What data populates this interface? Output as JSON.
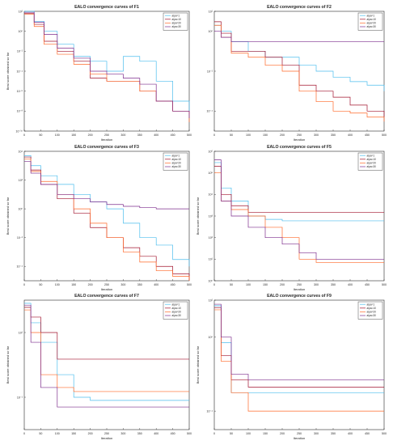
{
  "colors": {
    "axis": "#262626",
    "series": [
      "#4dbeee",
      "#a2142f",
      "#ff6929",
      "#7e2f8e"
    ],
    "grid": "#e0e0e0"
  },
  "chart_data": [
    {
      "type": "line",
      "title": "EALO convergence curves of F1",
      "xlabel": "Iteration",
      "ylabel": "Best score obtained so far",
      "xlim": [
        0,
        500
      ],
      "xticks": [
        0,
        50,
        100,
        150,
        200,
        250,
        300,
        350,
        400,
        450,
        500
      ],
      "yscale": "log",
      "ylim": [
        1e-10,
        100
      ],
      "yticks": [
        1e-10,
        1e-08,
        1e-06,
        0.0001,
        0.01,
        1,
        100
      ],
      "ytick_labels": [
        "10⁻¹⁰",
        "10⁻⁸",
        "10⁻⁶",
        "10⁻⁴",
        "10⁻²",
        "10⁰",
        "10²"
      ],
      "legend_position": "top-right",
      "grid": false,
      "series": [
        {
          "name": "alpa=1",
          "x": [
            0,
            30,
            60,
            100,
            150,
            200,
            250,
            300,
            350,
            400,
            450,
            500
          ],
          "y": [
            100,
            10,
            1,
            0.05,
            0.003,
            0.001,
            0.0001,
            0.003,
            0.001,
            1e-05,
            1e-07,
            3e-09
          ]
        },
        {
          "name": "alpa=10",
          "x": [
            0,
            30,
            60,
            100,
            150,
            200,
            250,
            300,
            350,
            400,
            450,
            500
          ],
          "y": [
            60,
            5,
            0.1,
            0.01,
            0.001,
            2e-05,
            1e-05,
            1e-05,
            1e-06,
            1e-07,
            1e-08,
            5e-09
          ]
        },
        {
          "name": "alpa=20",
          "x": [
            0,
            30,
            60,
            100,
            150,
            200,
            250,
            300,
            350,
            400,
            450,
            500
          ],
          "y": [
            50,
            3,
            0.05,
            0.005,
            0.0005,
            5e-05,
            1e-05,
            1e-05,
            1e-06,
            1e-07,
            1e-08,
            8e-10
          ]
        },
        {
          "name": "alpa=30",
          "x": [
            0,
            30,
            60,
            100,
            150,
            200,
            250,
            300,
            350,
            400,
            450,
            500
          ],
          "y": [
            80,
            8,
            0.5,
            0.02,
            0.002,
            0.0001,
            5e-05,
            2e-05,
            5e-06,
            1e-07,
            1e-08,
            2e-09
          ]
        }
      ]
    },
    {
      "type": "line",
      "title": "EALO convergence curves of F2",
      "xlabel": "Iteration",
      "ylabel": "",
      "xlim": [
        0,
        500
      ],
      "xticks": [
        0,
        50,
        100,
        150,
        200,
        250,
        300,
        350,
        400,
        450,
        500
      ],
      "yscale": "log",
      "ylim": [
        1e-05,
        10
      ],
      "yticks": [
        0.0001,
        0.01,
        1,
        10
      ],
      "ytick_labels": [
        "10⁻⁴",
        "10⁻²",
        "10⁰",
        "10¹"
      ],
      "legend_position": "top-right",
      "grid": false,
      "series": [
        {
          "name": "alpa=1",
          "x": [
            0,
            20,
            50,
            100,
            150,
            200,
            250,
            300,
            350,
            400,
            450,
            500
          ],
          "y": [
            2,
            1,
            0.3,
            0.1,
            0.05,
            0.05,
            0.02,
            0.01,
            0.005,
            0.003,
            0.002,
            0.001
          ]
        },
        {
          "name": "alpa=10",
          "x": [
            0,
            20,
            50,
            100,
            150,
            200,
            250,
            300,
            350,
            400,
            450,
            500
          ],
          "y": [
            3,
            0.8,
            0.1,
            0.1,
            0.05,
            0.02,
            0.002,
            0.001,
            0.0005,
            0.0002,
            0.0001,
            5e-05
          ]
        },
        {
          "name": "alpa=20",
          "x": [
            0,
            20,
            50,
            100,
            150,
            200,
            250,
            300,
            350,
            400,
            450,
            500
          ],
          "y": [
            2,
            0.5,
            0.08,
            0.05,
            0.02,
            0.01,
            0.001,
            0.0003,
            0.0001,
            8e-05,
            5e-05,
            3e-05
          ]
        },
        {
          "name": "alpa=30",
          "x": [
            0,
            20,
            50,
            100,
            150,
            200,
            250,
            300,
            350,
            400,
            450,
            500
          ],
          "y": [
            1,
            0.5,
            0.3,
            0.3,
            0.3,
            0.3,
            0.3,
            0.3,
            0.3,
            0.3,
            0.3,
            0.3
          ]
        }
      ]
    },
    {
      "type": "line",
      "title": "EALO convergence curves of F3",
      "xlabel": "Iteration",
      "ylabel": "Best score obtained so far",
      "xlim": [
        0,
        500
      ],
      "xticks": [
        0,
        50,
        100,
        150,
        200,
        250,
        300,
        350,
        400,
        450,
        500
      ],
      "yscale": "log",
      "ylim": [
        1e-05,
        10000
      ],
      "yticks": [
        0.0001,
        0.01,
        1,
        100,
        10000
      ],
      "ytick_labels": [
        "10⁻⁴",
        "10⁻²",
        "10⁰",
        "10²",
        "10⁴"
      ],
      "legend_position": "top-right",
      "grid": false,
      "series": [
        {
          "name": "alpa=1",
          "x": [
            0,
            20,
            50,
            100,
            150,
            200,
            250,
            300,
            350,
            400,
            450,
            500
          ],
          "y": [
            5000,
            1000,
            200,
            50,
            10,
            3,
            1,
            0.1,
            0.01,
            0.003,
            0.0003,
            0.0001
          ]
        },
        {
          "name": "alpa=10",
          "x": [
            0,
            20,
            50,
            100,
            150,
            200,
            250,
            300,
            350,
            400,
            450,
            500
          ],
          "y": [
            4000,
            500,
            50,
            5,
            0.5,
            0.05,
            0.01,
            0.002,
            0.0005,
            0.0001,
            3e-05,
            1e-05
          ]
        },
        {
          "name": "alpa=20",
          "x": [
            0,
            20,
            50,
            100,
            150,
            200,
            250,
            300,
            350,
            400,
            450,
            500
          ],
          "y": [
            3000,
            400,
            80,
            10,
            1,
            0.1,
            0.01,
            0.001,
            0.0002,
            5e-05,
            2e-05,
            1e-05
          ]
        },
        {
          "name": "alpa=30",
          "x": [
            0,
            20,
            50,
            100,
            150,
            200,
            250,
            300,
            350,
            400,
            450,
            500
          ],
          "y": [
            2000,
            300,
            50,
            10,
            5,
            3,
            2,
            1.5,
            1.2,
            1,
            1,
            1
          ]
        }
      ]
    },
    {
      "type": "line",
      "title": "EALO convergence curves of F5",
      "xlabel": "Iteration",
      "ylabel": "Best score obtained so far",
      "xlim": [
        0,
        500
      ],
      "xticks": [
        0,
        50,
        100,
        150,
        200,
        250,
        300,
        350,
        400,
        450,
        500
      ],
      "yscale": "log",
      "ylim": [
        1,
        1000000.0
      ],
      "yticks": [
        1,
        10,
        100,
        1000,
        10000,
        100000,
        1000000
      ],
      "ytick_labels": [
        "10⁰",
        "10¹",
        "10²",
        "10³",
        "10⁴",
        "10⁵",
        "10⁶"
      ],
      "legend_position": "top-right",
      "grid": false,
      "series": [
        {
          "name": "alpa=1",
          "x": [
            0,
            20,
            50,
            100,
            150,
            200,
            250,
            300,
            350,
            400,
            450,
            500
          ],
          "y": [
            300000,
            20000,
            5000,
            1000,
            700,
            600,
            600,
            600,
            600,
            600,
            600,
            600
          ]
        },
        {
          "name": "alpa=10",
          "x": [
            0,
            20,
            50,
            100,
            150,
            200,
            250,
            300,
            350,
            400,
            450,
            500
          ],
          "y": [
            200000,
            10000,
            3000,
            1500,
            1500,
            1500,
            1500,
            1500,
            1500,
            1500,
            1500,
            1500
          ]
        },
        {
          "name": "alpa=20",
          "x": [
            0,
            20,
            50,
            100,
            150,
            200,
            250,
            300,
            350,
            400,
            450,
            500
          ],
          "y": [
            100000,
            5000,
            2000,
            1000,
            300,
            100,
            10,
            7,
            7,
            7,
            7,
            7
          ]
        },
        {
          "name": "alpa=30",
          "x": [
            0,
            20,
            50,
            100,
            150,
            200,
            250,
            300,
            350,
            400,
            450,
            500
          ],
          "y": [
            400000,
            5000,
            1000,
            300,
            100,
            50,
            20,
            10,
            10,
            10,
            10,
            10
          ]
        }
      ]
    },
    {
      "type": "line",
      "title": "EALO convergence curves of F7",
      "xlabel": "Iteration",
      "ylabel": "Best score obtained so far",
      "xlim": [
        0,
        500
      ],
      "xticks": [
        0,
        50,
        100,
        150,
        200,
        250,
        300,
        350,
        400,
        450,
        500
      ],
      "yscale": "log",
      "ylim": [
        0.01,
        100
      ],
      "yticks": [
        0.1,
        10
      ],
      "ytick_labels": [
        "10⁻¹",
        "10¹"
      ],
      "legend_position": "top-right",
      "grid": false,
      "series": [
        {
          "name": "alpa=1",
          "x": [
            0,
            20,
            50,
            100,
            150,
            200,
            250,
            300,
            350,
            400,
            450,
            500
          ],
          "y": [
            80,
            20,
            5,
            0.5,
            0.1,
            0.08,
            0.08,
            0.08,
            0.08,
            0.08,
            0.08,
            0.08
          ]
        },
        {
          "name": "alpa=10",
          "x": [
            0,
            20,
            50,
            100,
            150,
            200,
            250,
            300,
            350,
            400,
            450,
            500
          ],
          "y": [
            60,
            30,
            10,
            1.5,
            1.5,
            1.5,
            1.5,
            1.5,
            1.5,
            1.5,
            1.5,
            1.5
          ]
        },
        {
          "name": "alpa=20",
          "x": [
            0,
            20,
            50,
            100,
            150,
            200,
            250,
            300,
            350,
            400,
            450,
            500
          ],
          "y": [
            50,
            10,
            0.5,
            0.2,
            0.15,
            0.15,
            0.15,
            0.15,
            0.15,
            0.15,
            0.15,
            0.15
          ]
        },
        {
          "name": "alpa=30",
          "x": [
            0,
            20,
            50,
            100,
            150,
            200,
            250,
            300,
            350,
            400,
            450,
            500
          ],
          "y": [
            70,
            5,
            0.2,
            0.05,
            0.05,
            0.05,
            0.05,
            0.05,
            0.05,
            0.05,
            0.05,
            0.05
          ]
        }
      ]
    },
    {
      "type": "line",
      "title": "EALO convergence curves of F9",
      "xlabel": "Iteration",
      "ylabel": "Best score obtained so far",
      "xlim": [
        0,
        500
      ],
      "xticks": [
        0,
        50,
        100,
        150,
        200,
        250,
        300,
        350,
        400,
        450,
        500
      ],
      "yscale": "log",
      "ylim": [
        1e-05,
        100
      ],
      "yticks": [
        0.0001,
        1,
        100
      ],
      "ytick_labels": [
        "10⁻⁴",
        "10⁰",
        "10²"
      ],
      "legend_position": "top-right",
      "grid": false,
      "series": [
        {
          "name": "alpa=1",
          "x": [
            0,
            20,
            50,
            100,
            150,
            200,
            250,
            300,
            350,
            400,
            450,
            500
          ],
          "y": [
            50,
            0.5,
            0.001,
            0.001,
            0.001,
            0.001,
            0.001,
            0.001,
            0.001,
            0.001,
            0.001,
            0.001
          ]
        },
        {
          "name": "alpa=10",
          "x": [
            0,
            20,
            50,
            100,
            150,
            200,
            250,
            300,
            350,
            400,
            450,
            500
          ],
          "y": [
            40,
            0.1,
            0.005,
            0.002,
            0.002,
            0.002,
            0.002,
            0.002,
            0.002,
            0.002,
            0.002,
            0.002
          ]
        },
        {
          "name": "alpa=20",
          "x": [
            0,
            20,
            50,
            100,
            150,
            200,
            250,
            300,
            350,
            400,
            450,
            500
          ],
          "y": [
            30,
            0.05,
            0.001,
            0.0001,
            0.0001,
            0.0001,
            0.0001,
            0.0001,
            0.0001,
            0.0001,
            0.0001,
            0.0001
          ]
        },
        {
          "name": "alpa=30",
          "x": [
            0,
            20,
            50,
            100,
            150,
            200,
            250,
            300,
            350,
            400,
            450,
            500
          ],
          "y": [
            60,
            1,
            0.01,
            0.005,
            0.005,
            0.005,
            0.005,
            0.005,
            0.005,
            0.005,
            0.005,
            0.005
          ]
        }
      ]
    }
  ]
}
